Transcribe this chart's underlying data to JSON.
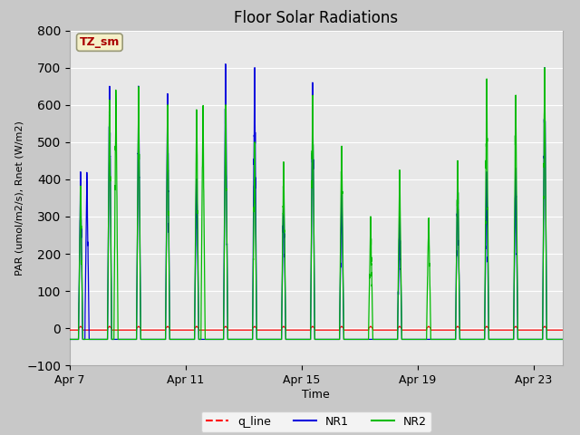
{
  "title": "Floor Solar Radiations",
  "xlabel": "Time",
  "ylabel": "PAR (umol/m2/s), Rnet (W/m2)",
  "ylim": [
    -100,
    800
  ],
  "yticks": [
    -100,
    0,
    100,
    200,
    300,
    400,
    500,
    600,
    700,
    800
  ],
  "fig_bg_color": "#c8c8c8",
  "plot_bg_color": "#e8e8e8",
  "title_fontsize": 12,
  "annotation_text": "TZ_sm",
  "annotation_color": "#aa0000",
  "annotation_bg": "#f5f0c8",
  "x_tick_labels": [
    "Apr 7",
    "Apr 11",
    "Apr 15",
    "Apr 19",
    "Apr 23"
  ],
  "x_tick_positions": [
    0,
    4,
    8,
    12,
    16
  ],
  "num_days": 17,
  "line_colors": [
    "#ff0000",
    "#0000dd",
    "#00bb00"
  ],
  "legend_labels": [
    "q_line",
    "NR1",
    "NR2"
  ],
  "legend_linestyles": [
    "--",
    "-",
    "-"
  ]
}
